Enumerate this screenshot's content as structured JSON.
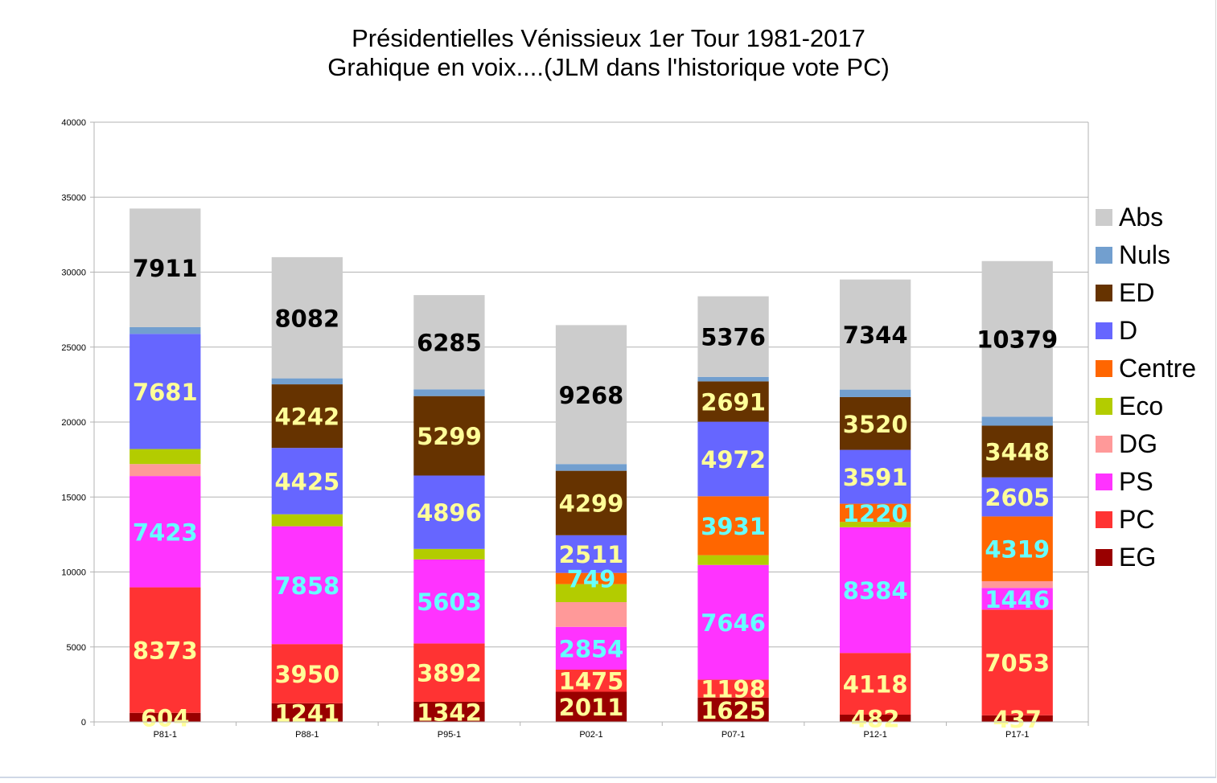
{
  "chart_data": {
    "type": "bar",
    "stacked": true,
    "title": "Présidentielles Vénissieux 1er Tour 1981-2017",
    "subtitle": "Grahique en voix....(JLM dans l'historique vote PC)",
    "xlabel": "",
    "ylabel": "",
    "ylim": [
      0,
      40000
    ],
    "yticks": [
      0,
      5000,
      10000,
      15000,
      20000,
      25000,
      30000,
      35000,
      40000
    ],
    "grid": true,
    "legend_position": "right",
    "categories": [
      "P81-1",
      "P88-1",
      "P95-1",
      "P02-1",
      "P07-1",
      "P12-1",
      "P17-1"
    ],
    "series": [
      {
        "name": "EG",
        "color": "#990000",
        "label_color": "#ffff99",
        "values": [
          604,
          1241,
          1342,
          2011,
          1625,
          482,
          437
        ]
      },
      {
        "name": "PC",
        "color": "#ff3333",
        "label_color": "#ffff99",
        "values": [
          8373,
          3950,
          3892,
          1475,
          1198,
          4118,
          7053
        ]
      },
      {
        "name": "PS",
        "color": "#ff33ff",
        "label_color": "#66ffff",
        "values": [
          7423,
          7858,
          5603,
          2854,
          7646,
          8384,
          1446
        ]
      },
      {
        "name": "DG",
        "color": "#ff9999",
        "label_color": "#ffff99",
        "values": [
          800,
          0,
          0,
          1650,
          0,
          0,
          450
        ]
      },
      {
        "name": "Eco",
        "color": "#b3cc00",
        "label_color": "#ffff99",
        "values": [
          1000,
          800,
          700,
          1200,
          650,
          350,
          0
        ]
      },
      {
        "name": "Centre",
        "color": "#ff6600",
        "label_color": "#66ffff",
        "values": [
          0,
          0,
          0,
          749,
          3931,
          1220,
          4319
        ]
      },
      {
        "name": "D",
        "color": "#6666ff",
        "label_color": "#ffff99",
        "values": [
          7681,
          4425,
          4896,
          2511,
          4972,
          3591,
          2605
        ]
      },
      {
        "name": "ED",
        "color": "#663300",
        "label_color": "#ffff99",
        "values": [
          0,
          4242,
          5299,
          4299,
          2691,
          3520,
          3448
        ]
      },
      {
        "name": "Nuls",
        "color": "#729fcf",
        "label_color": "#000000",
        "values": [
          450,
          400,
          450,
          450,
          300,
          500,
          600
        ]
      },
      {
        "name": "Abs",
        "color": "#cccccc",
        "label_color": "#000000",
        "values": [
          7911,
          8082,
          6285,
          9268,
          5376,
          7344,
          10379
        ]
      }
    ],
    "data_labels": [
      {
        "category": "P81-1",
        "series": "EG",
        "text": "604"
      },
      {
        "category": "P81-1",
        "series": "PC",
        "text": "8373"
      },
      {
        "category": "P81-1",
        "series": "PS",
        "text": "7423"
      },
      {
        "category": "P81-1",
        "series": "D",
        "text": "7681"
      },
      {
        "category": "P81-1",
        "series": "Abs",
        "text": "7911"
      },
      {
        "category": "P88-1",
        "series": "EG",
        "text": "1241"
      },
      {
        "category": "P88-1",
        "series": "PC",
        "text": "3950"
      },
      {
        "category": "P88-1",
        "series": "PS",
        "text": "7858"
      },
      {
        "category": "P88-1",
        "series": "D",
        "text": "4425"
      },
      {
        "category": "P88-1",
        "series": "ED",
        "text": "4242"
      },
      {
        "category": "P88-1",
        "series": "Abs",
        "text": "8082"
      },
      {
        "category": "P95-1",
        "series": "EG",
        "text": "1342"
      },
      {
        "category": "P95-1",
        "series": "PC",
        "text": "3892"
      },
      {
        "category": "P95-1",
        "series": "PS",
        "text": "5603"
      },
      {
        "category": "P95-1",
        "series": "D",
        "text": "4896"
      },
      {
        "category": "P95-1",
        "series": "ED",
        "text": "5299"
      },
      {
        "category": "P95-1",
        "series": "Abs",
        "text": "6285"
      },
      {
        "category": "P02-1",
        "series": "EG",
        "text": "2011"
      },
      {
        "category": "P02-1",
        "series": "PC",
        "text": "1475"
      },
      {
        "category": "P02-1",
        "series": "PS",
        "text": "2854"
      },
      {
        "category": "P02-1",
        "series": "Centre",
        "text": "749"
      },
      {
        "category": "P02-1",
        "series": "D",
        "text": "2511"
      },
      {
        "category": "P02-1",
        "series": "ED",
        "text": "4299"
      },
      {
        "category": "P02-1",
        "series": "Abs",
        "text": "9268"
      },
      {
        "category": "P07-1",
        "series": "EG",
        "text": "1625"
      },
      {
        "category": "P07-1",
        "series": "PC",
        "text": "1198"
      },
      {
        "category": "P07-1",
        "series": "PS",
        "text": "7646"
      },
      {
        "category": "P07-1",
        "series": "Centre",
        "text": "3931"
      },
      {
        "category": "P07-1",
        "series": "D",
        "text": "4972"
      },
      {
        "category": "P07-1",
        "series": "ED",
        "text": "2691"
      },
      {
        "category": "P07-1",
        "series": "Abs",
        "text": "5376"
      },
      {
        "category": "P12-1",
        "series": "EG",
        "text": "482"
      },
      {
        "category": "P12-1",
        "series": "PC",
        "text": "4118"
      },
      {
        "category": "P12-1",
        "series": "PS",
        "text": "8384"
      },
      {
        "category": "P12-1",
        "series": "Centre",
        "text": "1220"
      },
      {
        "category": "P12-1",
        "series": "D",
        "text": "3591"
      },
      {
        "category": "P12-1",
        "series": "ED",
        "text": "3520"
      },
      {
        "category": "P12-1",
        "series": "Abs",
        "text": "7344"
      },
      {
        "category": "P17-1",
        "series": "EG",
        "text": "437"
      },
      {
        "category": "P17-1",
        "series": "PC",
        "text": "7053"
      },
      {
        "category": "P17-1",
        "series": "PS",
        "text": "1446"
      },
      {
        "category": "P17-1",
        "series": "Centre",
        "text": "4319"
      },
      {
        "category": "P17-1",
        "series": "D",
        "text": "2605"
      },
      {
        "category": "P17-1",
        "series": "ED",
        "text": "3448"
      },
      {
        "category": "P17-1",
        "series": "Abs",
        "text": "10379"
      }
    ],
    "legend_order": [
      "Abs",
      "Nuls",
      "ED",
      "D",
      "Centre",
      "Eco",
      "DG",
      "PS",
      "PC",
      "EG"
    ]
  }
}
